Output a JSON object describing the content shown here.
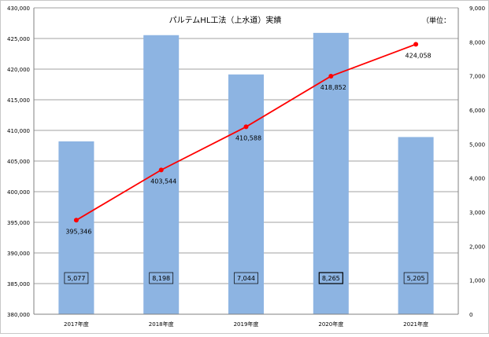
{
  "chart_data": {
    "type": "bar+line",
    "title": "パルテムHL工法（上水道）実績",
    "unit_label": "（単位：",
    "categories": [
      "2017年度",
      "2018年度",
      "2019年度",
      "2020年度",
      "2021年度"
    ],
    "bars": {
      "axis": "right",
      "values": [
        5077,
        8198,
        7044,
        8265,
        5205
      ],
      "labels": [
        "5,077",
        "8,198",
        "7,044",
        "8,265",
        "5,205"
      ],
      "color": "#8db4e2"
    },
    "line": {
      "axis": "left",
      "values": [
        395346,
        403544,
        410588,
        418852,
        424058
      ],
      "labels": [
        "395,346",
        "403,544",
        "410,588",
        "418,852",
        "424,058"
      ],
      "color": "#ff0000"
    },
    "left_axis": {
      "min": 380000,
      "max": 430000,
      "ticks": [
        380000,
        385000,
        390000,
        395000,
        400000,
        405000,
        410000,
        415000,
        420000,
        425000,
        430000
      ],
      "tick_labels": [
        "380,000",
        "385,000",
        "390,000",
        "395,000",
        "400,000",
        "405,000",
        "410,000",
        "415,000",
        "420,000",
        "425,000",
        "430,000"
      ]
    },
    "right_axis": {
      "min": 0,
      "max": 9000,
      "ticks": [
        0,
        1000,
        2000,
        3000,
        4000,
        5000,
        6000,
        7000,
        8000,
        9000
      ],
      "tick_labels": [
        "0",
        "1,000",
        "2,000",
        "3,000",
        "4,000",
        "5,000",
        "6,000",
        "7,000",
        "8,000",
        "9,000"
      ]
    },
    "grid": true,
    "legend": "none"
  }
}
